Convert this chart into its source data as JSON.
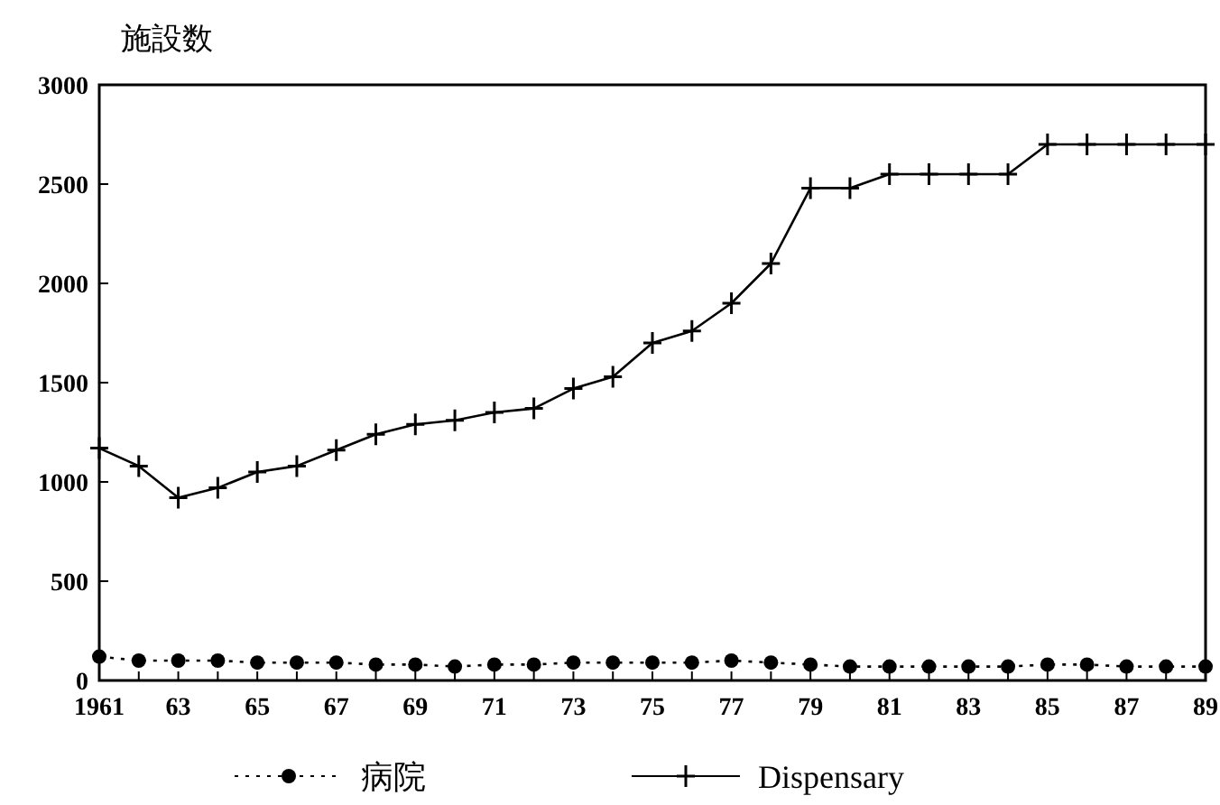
{
  "chart_data": {
    "type": "line",
    "ylabel": "施設数",
    "x": [
      1961,
      1962,
      1963,
      1964,
      1965,
      1966,
      1967,
      1968,
      1969,
      1970,
      1971,
      1972,
      1973,
      1974,
      1975,
      1976,
      1977,
      1978,
      1979,
      1980,
      1981,
      1982,
      1983,
      1984,
      1985,
      1986,
      1987,
      1988,
      1989
    ],
    "series": [
      {
        "name": "病院",
        "color": "#000000",
        "marker": "circle",
        "line_style": "dotted",
        "values": [
          120,
          100,
          100,
          100,
          90,
          90,
          90,
          80,
          80,
          70,
          80,
          80,
          90,
          90,
          90,
          90,
          100,
          90,
          80,
          70,
          70,
          70,
          70,
          70,
          80,
          80,
          70,
          70,
          70
        ]
      },
      {
        "name": "Dispensary",
        "color": "#000000",
        "marker": "cross",
        "line_style": "solid",
        "values": [
          1170,
          1080,
          920,
          970,
          1050,
          1080,
          1160,
          1240,
          1290,
          1310,
          1350,
          1370,
          1470,
          1530,
          1700,
          1760,
          1900,
          2100,
          2480,
          2480,
          2550,
          2550,
          2550,
          2550,
          2700,
          2700,
          2700,
          2700,
          2700
        ]
      }
    ],
    "xlim": [
      1961,
      1989
    ],
    "ylim": [
      0,
      3000
    ],
    "xticks": [
      1961,
      {
        "value": 1962,
        "label": null
      },
      {
        "value": 1963,
        "label": "63"
      },
      {
        "value": 1964,
        "label": null
      },
      {
        "value": 1965,
        "label": "65"
      },
      {
        "value": 1966,
        "label": null
      },
      {
        "value": 1967,
        "label": "67"
      },
      {
        "value": 1968,
        "label": null
      },
      {
        "value": 1969,
        "label": "69"
      },
      {
        "value": 1970,
        "label": null
      },
      {
        "value": 1971,
        "label": "71"
      },
      {
        "value": 1972,
        "label": null
      },
      {
        "value": 1973,
        "label": "73"
      },
      {
        "value": 1974,
        "label": null
      },
      {
        "value": 1975,
        "label": "75"
      },
      {
        "value": 1976,
        "label": null
      },
      {
        "value": 1977,
        "label": "77"
      },
      {
        "value": 1978,
        "label": null
      },
      {
        "value": 1979,
        "label": "79"
      },
      {
        "value": 1980,
        "label": null
      },
      {
        "value": 1981,
        "label": "81"
      },
      {
        "value": 1982,
        "label": null
      },
      {
        "value": 1983,
        "label": "83"
      },
      {
        "value": 1984,
        "label": null
      },
      {
        "value": 1985,
        "label": "85"
      },
      {
        "value": 1986,
        "label": null
      },
      {
        "value": 1987,
        "label": "87"
      },
      {
        "value": 1988,
        "label": null
      },
      {
        "value": 1989,
        "label": "89"
      }
    ],
    "yticks": [
      0,
      500,
      1000,
      1500,
      2000,
      2500,
      3000
    ],
    "grid": false,
    "legend": "bottom"
  }
}
